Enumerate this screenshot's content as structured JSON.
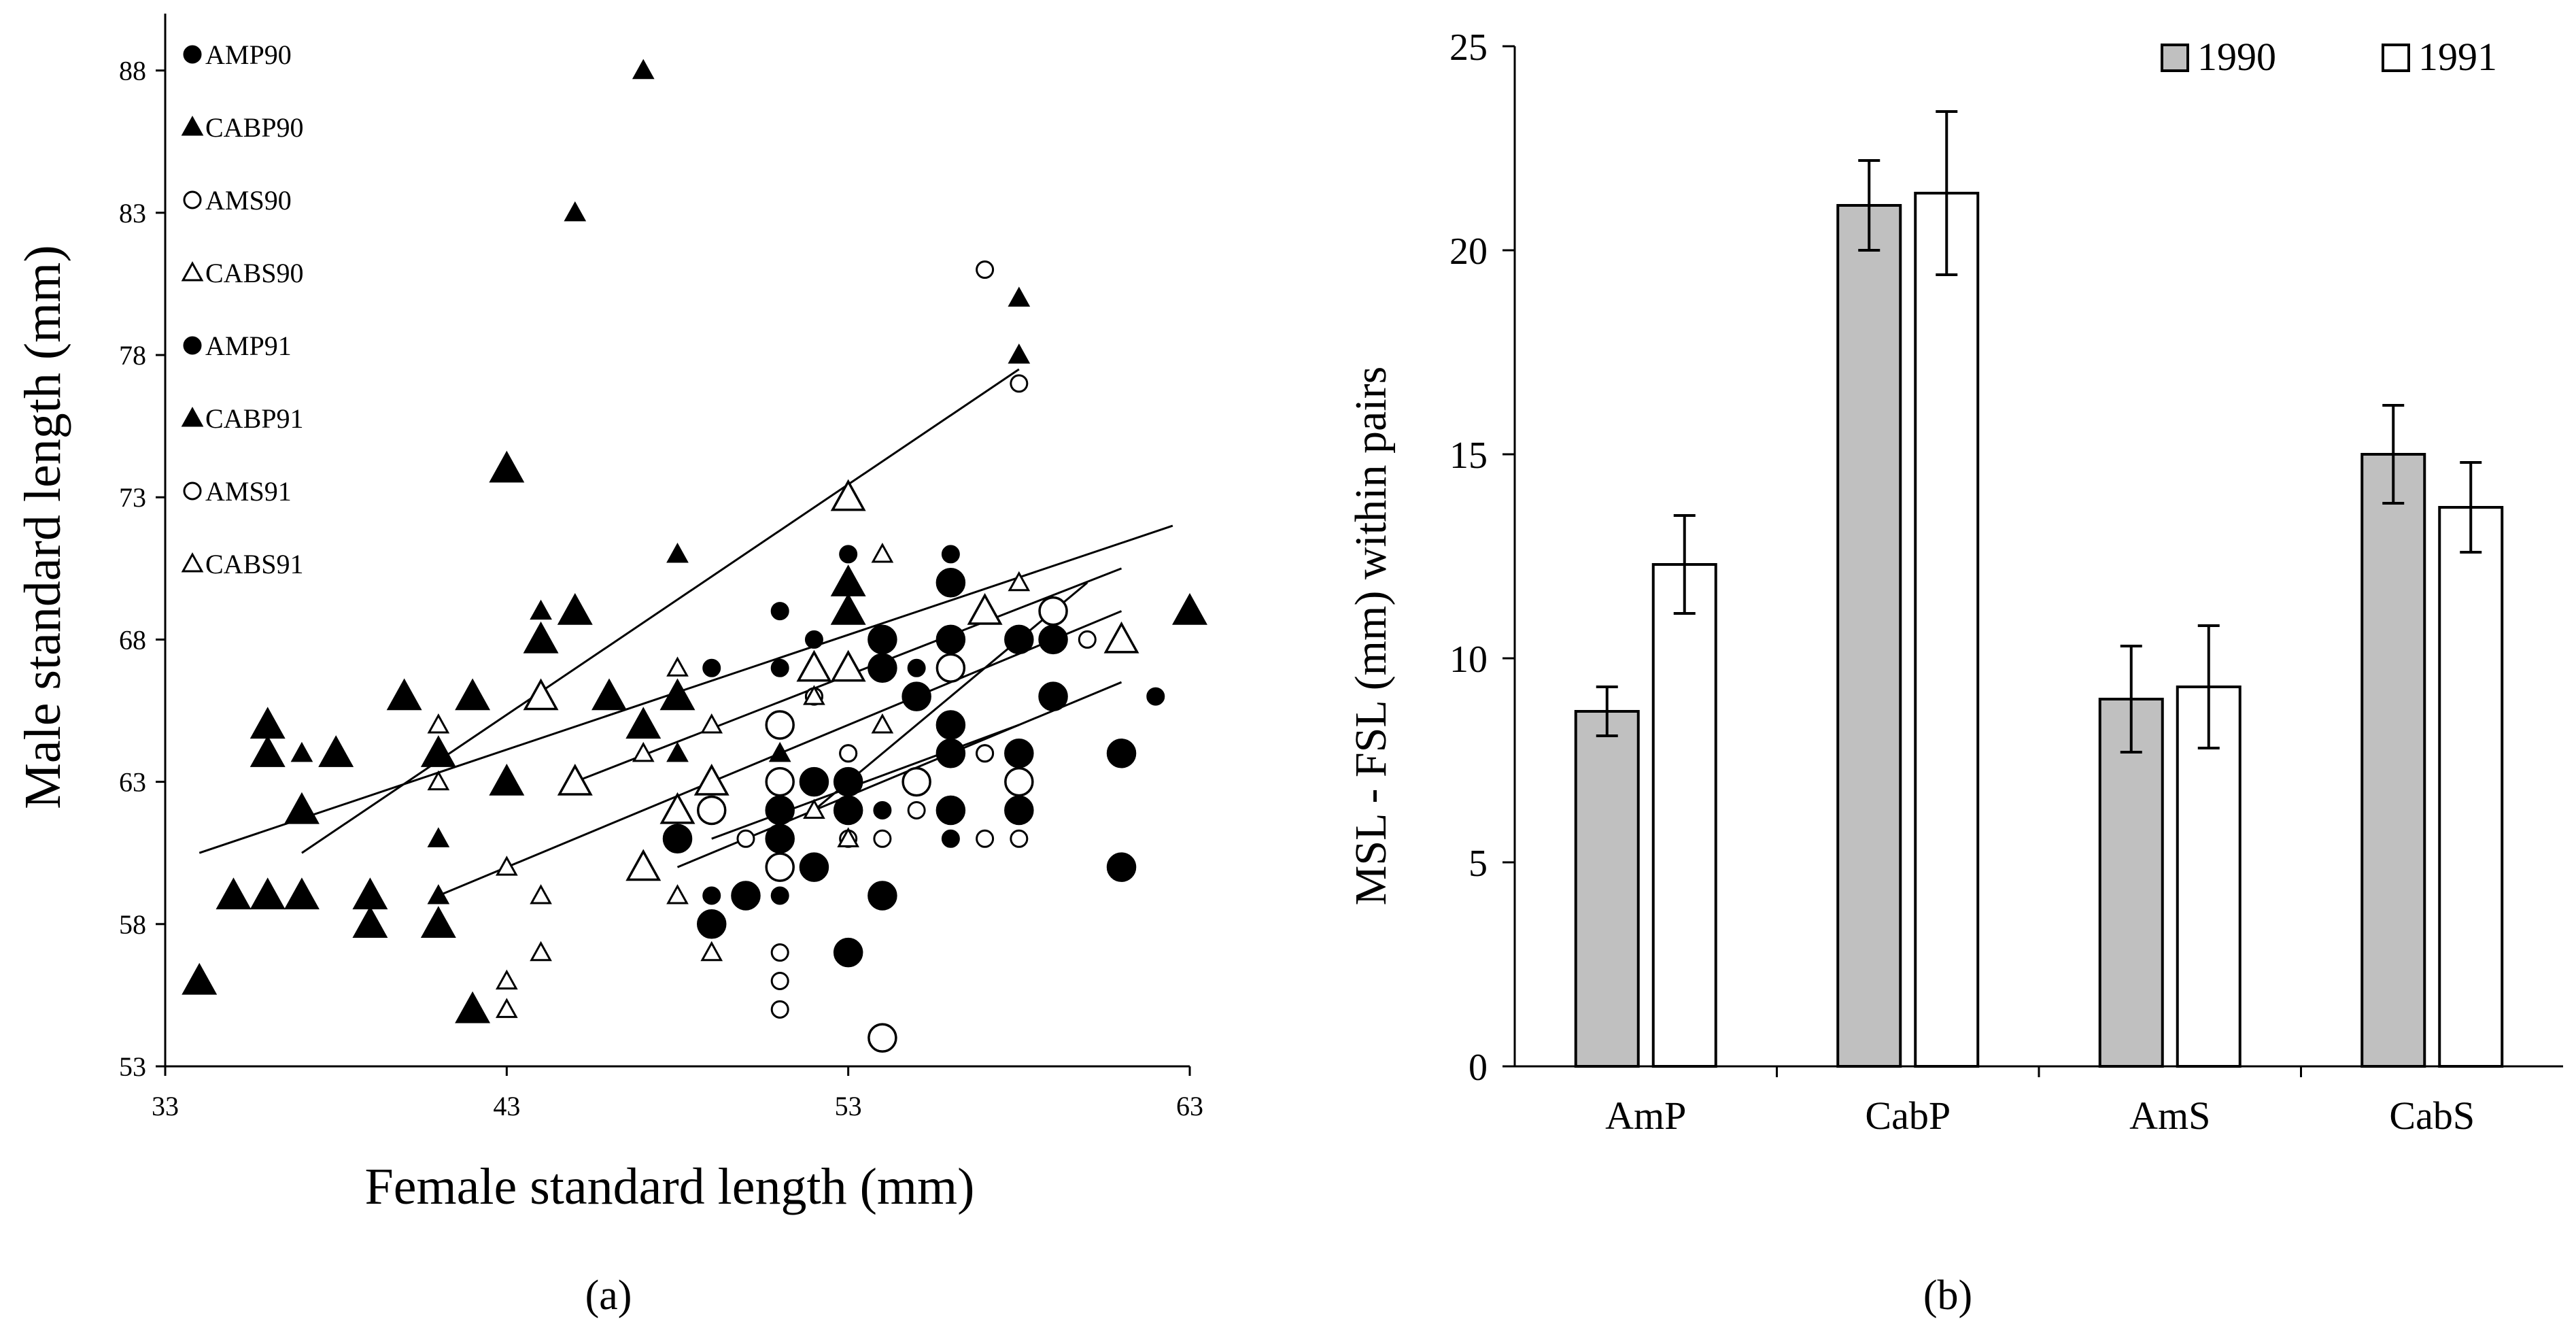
{
  "chart_data": [
    {
      "type": "scatter",
      "panel_label": "(a)",
      "xlabel": "Female standard length (mm)",
      "ylabel": "Male standard length (mm)",
      "xlim": [
        33,
        63
      ],
      "ylim": [
        53,
        90
      ],
      "xticks": [
        "33",
        "43",
        "53",
        "63"
      ],
      "yticks": [
        "53",
        "58",
        "63",
        "68",
        "73",
        "78",
        "83",
        "88"
      ],
      "legend": {
        "position": "top-left",
        "entries": [
          "AMP90",
          "CABP90",
          "AMS90",
          "CABS90",
          "AMP91",
          "CABP91",
          "AMS91",
          "CABS91"
        ]
      },
      "series": [
        {
          "name": "AMP90",
          "marker": "circle",
          "fill": "filled",
          "size": "small",
          "points": [
            [
              49,
              67
            ],
            [
              49,
              59
            ],
            [
              51,
              69
            ],
            [
              51,
              67
            ],
            [
              51,
              59
            ],
            [
              52,
              68
            ],
            [
              52,
              66
            ],
            [
              53,
              71
            ],
            [
              53,
              64
            ],
            [
              54,
              62
            ],
            [
              55,
              67
            ],
            [
              56,
              71
            ],
            [
              56,
              61
            ],
            [
              57,
              64
            ],
            [
              59,
              68
            ],
            [
              62,
              66
            ]
          ]
        },
        {
          "name": "CABP90",
          "marker": "triangle",
          "fill": "filled",
          "size": "small",
          "points": [
            [
              37,
              64
            ],
            [
              41,
              61
            ],
            [
              41,
              59
            ],
            [
              41,
              58
            ],
            [
              44,
              69
            ],
            [
              45,
              83
            ],
            [
              47,
              88
            ],
            [
              48,
              71
            ],
            [
              48,
              64
            ],
            [
              51,
              64
            ],
            [
              58,
              80
            ],
            [
              58,
              78
            ]
          ]
        },
        {
          "name": "AMS90",
          "marker": "circle",
          "fill": "open",
          "size": "small",
          "points": [
            [
              50,
              61
            ],
            [
              51,
              57
            ],
            [
              51,
              56
            ],
            [
              51,
              55
            ],
            [
              52,
              66
            ],
            [
              53,
              64
            ],
            [
              53,
              61
            ],
            [
              54,
              61
            ],
            [
              55,
              62
            ],
            [
              57,
              64
            ],
            [
              57,
              61
            ],
            [
              57,
              81
            ],
            [
              58,
              77
            ],
            [
              58,
              61
            ],
            [
              60,
              68
            ]
          ]
        },
        {
          "name": "CABS90",
          "marker": "triangle",
          "fill": "open",
          "size": "small",
          "points": [
            [
              41,
              65
            ],
            [
              41,
              63
            ],
            [
              43,
              60
            ],
            [
              43,
              56
            ],
            [
              43,
              55
            ],
            [
              44,
              59
            ],
            [
              44,
              57
            ],
            [
              47,
              64
            ],
            [
              48,
              67
            ],
            [
              48,
              59
            ],
            [
              49,
              65
            ],
            [
              49,
              57
            ],
            [
              52,
              66
            ],
            [
              52,
              62
            ],
            [
              53,
              61
            ],
            [
              54,
              71
            ],
            [
              54,
              65
            ],
            [
              58,
              70
            ]
          ]
        },
        {
          "name": "AMP91",
          "marker": "circle",
          "fill": "filled",
          "size": "large",
          "points": [
            [
              48,
              61
            ],
            [
              49,
              58
            ],
            [
              50,
              59
            ],
            [
              51,
              62
            ],
            [
              51,
              61
            ],
            [
              52,
              63
            ],
            [
              52,
              60
            ],
            [
              53,
              63
            ],
            [
              53,
              62
            ],
            [
              53,
              57
            ],
            [
              54,
              68
            ],
            [
              54,
              67
            ],
            [
              54,
              59
            ],
            [
              55,
              66
            ],
            [
              56,
              70
            ],
            [
              56,
              68
            ],
            [
              56,
              65
            ],
            [
              56,
              64
            ],
            [
              56,
              62
            ],
            [
              58,
              68
            ],
            [
              58,
              64
            ],
            [
              58,
              62
            ],
            [
              59,
              68
            ],
            [
              59,
              66
            ],
            [
              61,
              64
            ],
            [
              61,
              60
            ]
          ]
        },
        {
          "name": "CABP91",
          "marker": "triangle",
          "fill": "filled",
          "size": "large",
          "points": [
            [
              34,
              56
            ],
            [
              35,
              59
            ],
            [
              36,
              65
            ],
            [
              36,
              64
            ],
            [
              36,
              59
            ],
            [
              37,
              62
            ],
            [
              37,
              59
            ],
            [
              38,
              64
            ],
            [
              39,
              59
            ],
            [
              39,
              58
            ],
            [
              40,
              66
            ],
            [
              41,
              64
            ],
            [
              41,
              58
            ],
            [
              42,
              66
            ],
            [
              42,
              55
            ],
            [
              43,
              74
            ],
            [
              43,
              63
            ],
            [
              44,
              68
            ],
            [
              45,
              69
            ],
            [
              46,
              66
            ],
            [
              47,
              65
            ],
            [
              48,
              66
            ],
            [
              53,
              70
            ],
            [
              53,
              69
            ],
            [
              63,
              69
            ]
          ]
        },
        {
          "name": "AMS91",
          "marker": "circle",
          "fill": "open",
          "size": "large",
          "points": [
            [
              49,
              62
            ],
            [
              51,
              65
            ],
            [
              51,
              63
            ],
            [
              51,
              60
            ],
            [
              54,
              54
            ],
            [
              55,
              63
            ],
            [
              56,
              67
            ],
            [
              58,
              63
            ],
            [
              59,
              69
            ]
          ]
        },
        {
          "name": "CABS91",
          "marker": "triangle",
          "fill": "open",
          "size": "large",
          "points": [
            [
              44,
              66
            ],
            [
              45,
              63
            ],
            [
              48,
              62
            ],
            [
              47,
              60
            ],
            [
              49,
              63
            ],
            [
              52,
              67
            ],
            [
              53,
              73
            ],
            [
              53,
              67
            ],
            [
              57,
              69
            ],
            [
              61,
              68
            ]
          ]
        }
      ],
      "regression_lines": [
        {
          "x": [
            34,
            62.5
          ],
          "y": [
            60.5,
            72
          ]
        },
        {
          "x": [
            37,
            58
          ],
          "y": [
            60.5,
            77.5
          ]
        },
        {
          "x": [
            41,
            61
          ],
          "y": [
            59,
            69
          ]
        },
        {
          "x": [
            45,
            61
          ],
          "y": [
            63,
            70.5
          ]
        },
        {
          "x": [
            48,
            61
          ],
          "y": [
            60,
            66.5
          ]
        },
        {
          "x": [
            49,
            58
          ],
          "y": [
            61,
            65
          ]
        },
        {
          "x": [
            52,
            60
          ],
          "y": [
            62,
            70
          ]
        }
      ]
    },
    {
      "type": "bar",
      "panel_label": "(b)",
      "ylabel": "MSL - FSL (mm) within pairs",
      "ylim": [
        0,
        25
      ],
      "yticks": [
        "0",
        "5",
        "10",
        "15",
        "20",
        "25"
      ],
      "categories": [
        "AmP",
        "CabP",
        "AmS",
        "CabS"
      ],
      "legend": {
        "position": "top-right",
        "entries": [
          "1990",
          "1991"
        ]
      },
      "series": [
        {
          "name": "1990",
          "color": "#c0c0c0",
          "values": [
            8.7,
            21.1,
            9.0,
            15.0
          ],
          "errors": [
            0.6,
            1.1,
            1.3,
            1.2
          ]
        },
        {
          "name": "1991",
          "color": "#ffffff",
          "values": [
            12.3,
            21.4,
            9.3,
            13.7
          ],
          "errors": [
            1.2,
            2.0,
            1.5,
            1.1
          ]
        }
      ]
    }
  ]
}
